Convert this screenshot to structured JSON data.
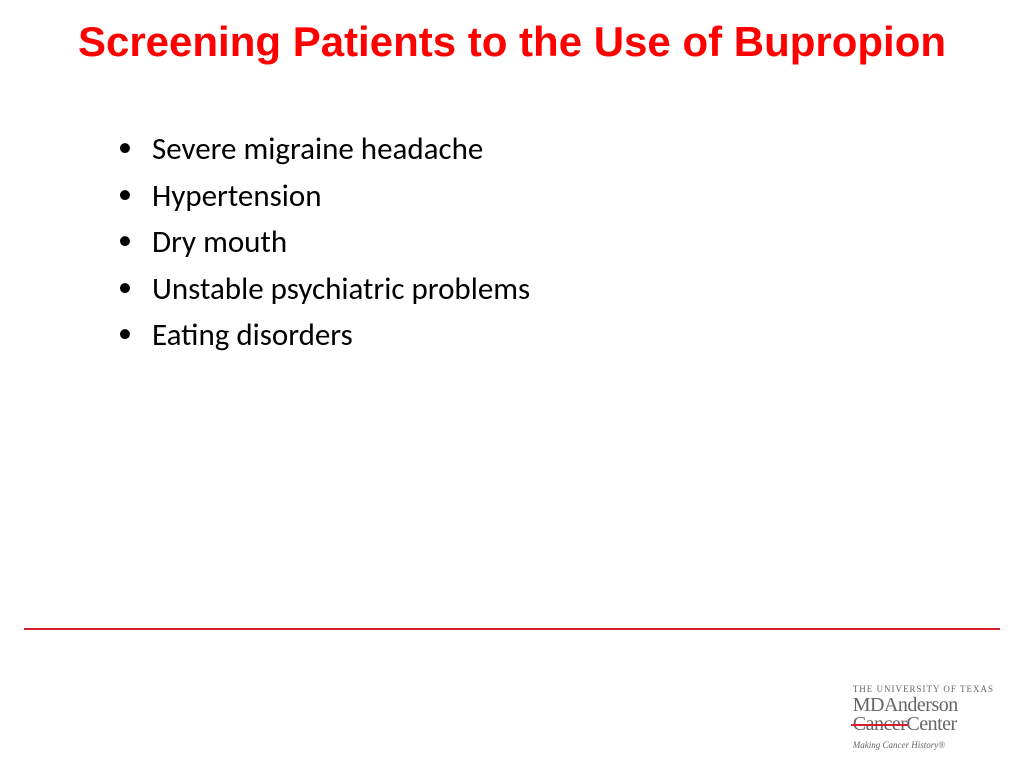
{
  "title": "Screening Patients to the Use of Bupropion",
  "title_color": "#ff0000",
  "title_fontsize": 42,
  "bullets": [
    "Severe migraine headache",
    "Hypertension",
    "Dry mouth",
    "Unstable psychiatric problems",
    "Eating disorders"
  ],
  "bullet_color": "#000000",
  "bullet_fontsize": 31,
  "divider_color": "#d81e2c",
  "background_color": "#ffffff",
  "logo": {
    "line1": "THE UNIVERSITY OF TEXAS",
    "line2_a": "MD",
    "line2_b": "Anderson",
    "line3_strike": "Cancer",
    "line3_rest": "Center",
    "tagline": "Making Cancer History®"
  }
}
